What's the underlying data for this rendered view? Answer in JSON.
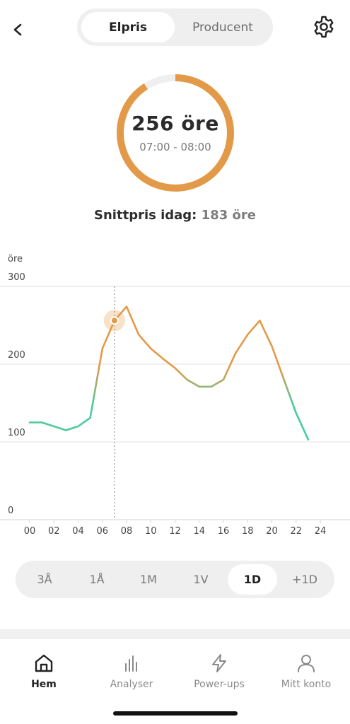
{
  "header": {
    "back_icon": "chevron-left-icon",
    "tabs": [
      {
        "label": "Elpris",
        "active": true
      },
      {
        "label": "Producent",
        "active": false
      }
    ],
    "settings_icon": "gear-icon"
  },
  "gauge": {
    "price": "256 öre",
    "time_range": "07:00 - 08:00",
    "fill_fraction": 0.91,
    "color": "#E39A48",
    "track_color": "#EFEFEF"
  },
  "average": {
    "label": "Snittpris idag:",
    "value": "183 öre"
  },
  "chart_data": {
    "type": "line",
    "ylabel": "öre",
    "ylim": [
      0,
      300
    ],
    "yticks": [
      "300",
      "200",
      "100",
      "0"
    ],
    "xticks": [
      "00",
      "02",
      "04",
      "06",
      "08",
      "10",
      "12",
      "14",
      "16",
      "18",
      "20",
      "22",
      "24"
    ],
    "xlim": [
      0,
      24
    ],
    "series": [
      {
        "x": [
          0,
          1,
          2,
          3,
          4,
          5,
          6,
          7,
          8,
          9,
          10,
          11,
          12,
          13,
          14,
          15,
          16,
          17,
          18,
          19,
          20,
          21,
          22,
          23
        ],
        "values": [
          125,
          125,
          120,
          115,
          120,
          131,
          220,
          256,
          274,
          238,
          220,
          207,
          195,
          180,
          171,
          171,
          180,
          214,
          238,
          256,
          223,
          180,
          137,
          103
        ]
      }
    ],
    "selected": {
      "x": 7,
      "value": 256
    },
    "colors": {
      "low": "#4CCB9C",
      "high": "#E39A48"
    },
    "grid": true
  },
  "range_selector": {
    "options": [
      "3Å",
      "1Å",
      "1M",
      "1V",
      "1D",
      "+1D"
    ],
    "active": "1D"
  },
  "nav": [
    {
      "label": "Hem",
      "icon": "home-icon",
      "active": true
    },
    {
      "label": "Analyser",
      "icon": "bar-chart-icon",
      "active": false
    },
    {
      "label": "Power-ups",
      "icon": "lightning-icon",
      "active": false
    },
    {
      "label": "Mitt konto",
      "icon": "user-icon",
      "active": false
    }
  ]
}
